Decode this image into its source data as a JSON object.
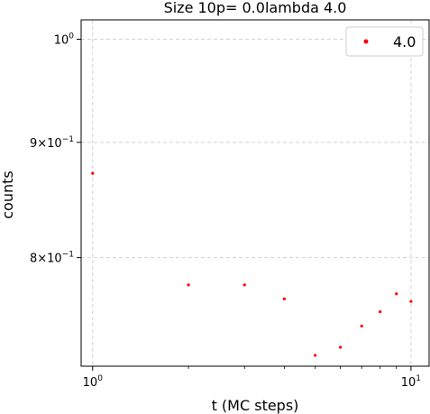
{
  "chart_data": {
    "type": "scatter",
    "title": "Size 10p= 0.0lambda 4.0",
    "xlabel": "t (MC steps)",
    "ylabel": "counts",
    "x_scale": "log",
    "y_scale": "log",
    "xlim": [
      0.92,
      11.4
    ],
    "ylim": [
      0.716,
      1.02
    ],
    "grid": true,
    "legend_position": "top-right",
    "x_ticks": [
      {
        "value": 1,
        "base": "10",
        "exp": "0"
      },
      {
        "value": 10,
        "base": "10",
        "exp": "1"
      }
    ],
    "y_ticks": [
      {
        "value": 1.0,
        "base": "10",
        "exp": "0",
        "mantissa": ""
      },
      {
        "value": 0.9,
        "base": "10",
        "exp": "−1",
        "mantissa": "9×"
      },
      {
        "value": 0.8,
        "base": "10",
        "exp": "−1",
        "mantissa": "8×"
      }
    ],
    "series": [
      {
        "name": "4.0",
        "color": "#ff0000",
        "marker": "circle",
        "x": [
          1,
          2,
          3,
          4,
          5,
          6,
          7,
          8,
          9,
          10
        ],
        "y": [
          0.872,
          0.778,
          0.778,
          0.767,
          0.724,
          0.73,
          0.746,
          0.757,
          0.771,
          0.765
        ]
      }
    ]
  }
}
